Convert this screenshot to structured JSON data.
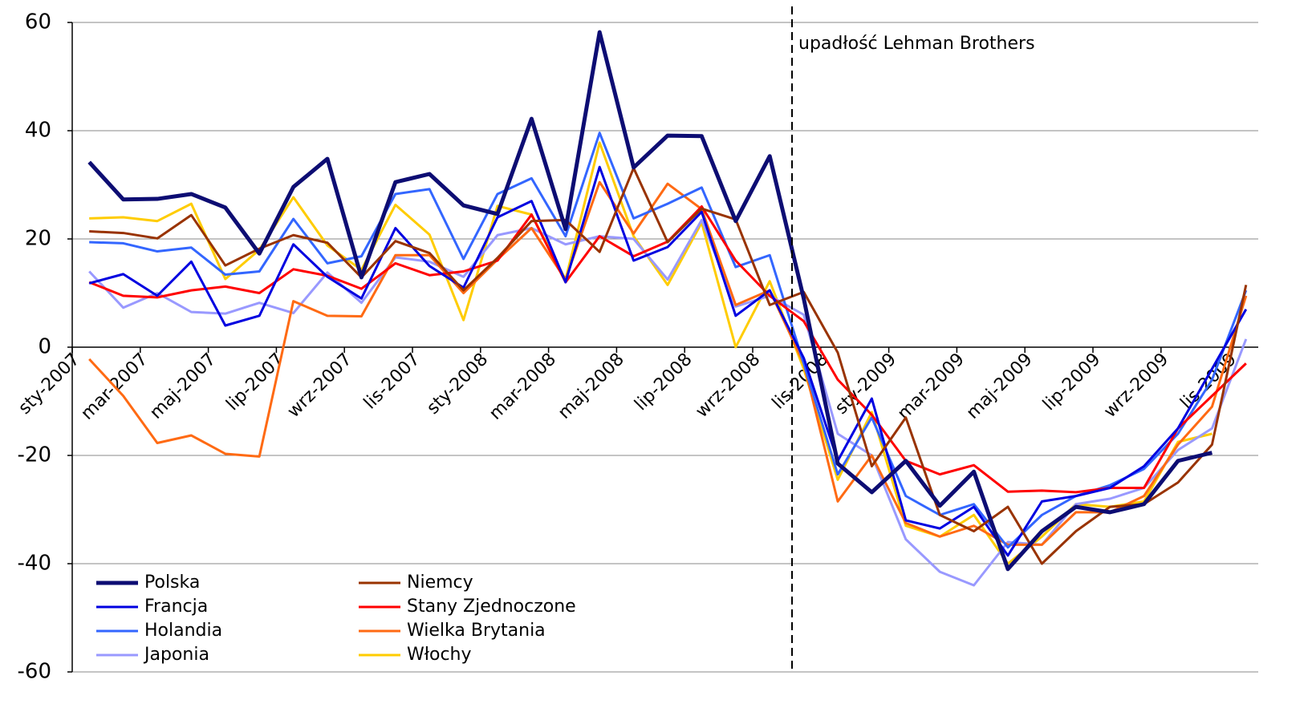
{
  "chart_data": {
    "type": "line",
    "annotation": "upadłość Lehman Brothers",
    "categories": [
      "sty-2007",
      null,
      "mar-2007",
      null,
      "maj-2007",
      null,
      "lip-2007",
      null,
      "wrz-2007",
      null,
      "lis-2007",
      null,
      "sty-2008",
      null,
      "mar-2008",
      null,
      "maj-2008",
      null,
      "lip-2008",
      null,
      "wrz-2008",
      null,
      "lis-2008",
      null,
      "sty-2009",
      null,
      "mar-2009",
      null,
      "maj-2009",
      null,
      "lip-2009",
      null,
      "wrz-2009",
      null,
      "lis-2009"
    ],
    "ylim": [
      -60,
      60
    ],
    "yticks": [
      -60,
      -40,
      -20,
      0,
      20,
      40,
      60
    ],
    "grid": true,
    "legend": "lower left",
    "series": [
      {
        "name": "Polska",
        "color": "#0d0d73",
        "line_width": 5,
        "values": [
          34.2,
          27.3,
          27.4,
          28.3,
          25.8,
          17.3,
          29.6,
          34.8,
          12.9,
          30.5,
          32,
          26.2,
          24.6,
          42.2,
          21.8,
          58.2,
          33.2,
          39.1,
          39,
          23.3,
          35.3,
          9,
          -21.5,
          -26.8,
          -21,
          -29.3,
          -23,
          -41,
          -34,
          -29.5,
          -30.5,
          -29,
          -21,
          -19.5,
          null
        ]
      },
      {
        "name": "Niemcy",
        "color": "#993300",
        "line_width": 3,
        "values": [
          21.4,
          21.1,
          20.1,
          24.4,
          15.1,
          18.2,
          20.7,
          19.3,
          12.9,
          19.6,
          17.4,
          10.5,
          16.5,
          23.3,
          23.5,
          17.6,
          33.1,
          19.4,
          25.6,
          23.6,
          7.8,
          10.2,
          -1,
          -22,
          -13,
          -31,
          -34,
          -29.5,
          -40,
          -34,
          -29.5,
          -29,
          -25,
          -18,
          11.5
        ]
      },
      {
        "name": "Francja",
        "color": "#0000e0",
        "line_width": 3,
        "values": [
          11.8,
          13.5,
          9.5,
          15.8,
          4,
          5.8,
          19,
          13,
          9,
          22,
          15,
          11,
          24,
          27,
          12,
          33.3,
          16,
          18.5,
          25,
          5.8,
          10.5,
          -2,
          -21,
          -9.5,
          -32,
          -33.5,
          -29.5,
          -38.5,
          -28.5,
          -27.5,
          -26,
          -22,
          -15,
          -4,
          7
        ]
      },
      {
        "name": "Stany Zjednoczone",
        "color": "#ff0000",
        "line_width": 3,
        "values": [
          12,
          9.5,
          9.2,
          10.5,
          11.2,
          10,
          14.4,
          13.2,
          10.8,
          15.5,
          13.3,
          14,
          16,
          24.5,
          12,
          20.5,
          16.8,
          19.5,
          26,
          16,
          9.5,
          4.8,
          -6,
          -12.5,
          -21,
          -23.5,
          -21.8,
          -26.7,
          -26.5,
          -26.8,
          -26,
          -26,
          -15,
          -9,
          -3
        ]
      },
      {
        "name": "Holandia",
        "color": "#3366ff",
        "line_width": 3,
        "values": [
          19.4,
          19.2,
          17.7,
          18.4,
          13.4,
          14,
          23.7,
          15.5,
          16.8,
          28.3,
          29.2,
          16.3,
          28.3,
          31.2,
          20.5,
          39.6,
          23.8,
          26.5,
          29.5,
          14.8,
          17,
          -3,
          -23.5,
          -13,
          -27.5,
          -31,
          -29,
          -37,
          -31,
          -27.5,
          -25.5,
          -22.5,
          -16,
          -6,
          10.5
        ]
      },
      {
        "name": "Wielka Brytania",
        "color": "#ff6a13",
        "line_width": 3,
        "values": [
          -2.2,
          -9,
          -17.7,
          -16.3,
          -19.7,
          -20.2,
          8.5,
          5.8,
          5.7,
          17,
          17,
          10,
          16.2,
          22,
          12.5,
          30.5,
          21,
          30.2,
          25.5,
          7.8,
          10.5,
          -3,
          -28.5,
          -20,
          -32.5,
          -35,
          -33,
          -36.5,
          -36.5,
          -30.5,
          -30.5,
          -27.5,
          -18,
          -11,
          9.5
        ]
      },
      {
        "name": "Japonia",
        "color": "#9999ff",
        "line_width": 3,
        "values": [
          14,
          7.3,
          10,
          6.5,
          6.2,
          8.2,
          6.3,
          13.8,
          8.2,
          16.6,
          15.8,
          13,
          20.7,
          22,
          19,
          20.5,
          20,
          12.5,
          23.5,
          7.5,
          9.5,
          6,
          -16,
          -20,
          -35.5,
          -41.5,
          -44,
          -36,
          -36.5,
          -29,
          -28,
          -26,
          -19,
          -15,
          1.5
        ]
      },
      {
        "name": "Włochy",
        "color": "#ffcc00",
        "line_width": 3,
        "values": [
          23.8,
          24,
          23.3,
          26.5,
          12.6,
          18,
          27.7,
          18.8,
          14.3,
          26.3,
          20.8,
          5,
          26.1,
          24.5,
          12.5,
          37.8,
          20.5,
          11.5,
          23,
          0,
          12.2,
          -4,
          -24.5,
          -12,
          -33,
          -35,
          -31,
          -40,
          -35,
          -29,
          -29.5,
          -28.5,
          -17.5,
          -16,
          null
        ]
      }
    ]
  }
}
